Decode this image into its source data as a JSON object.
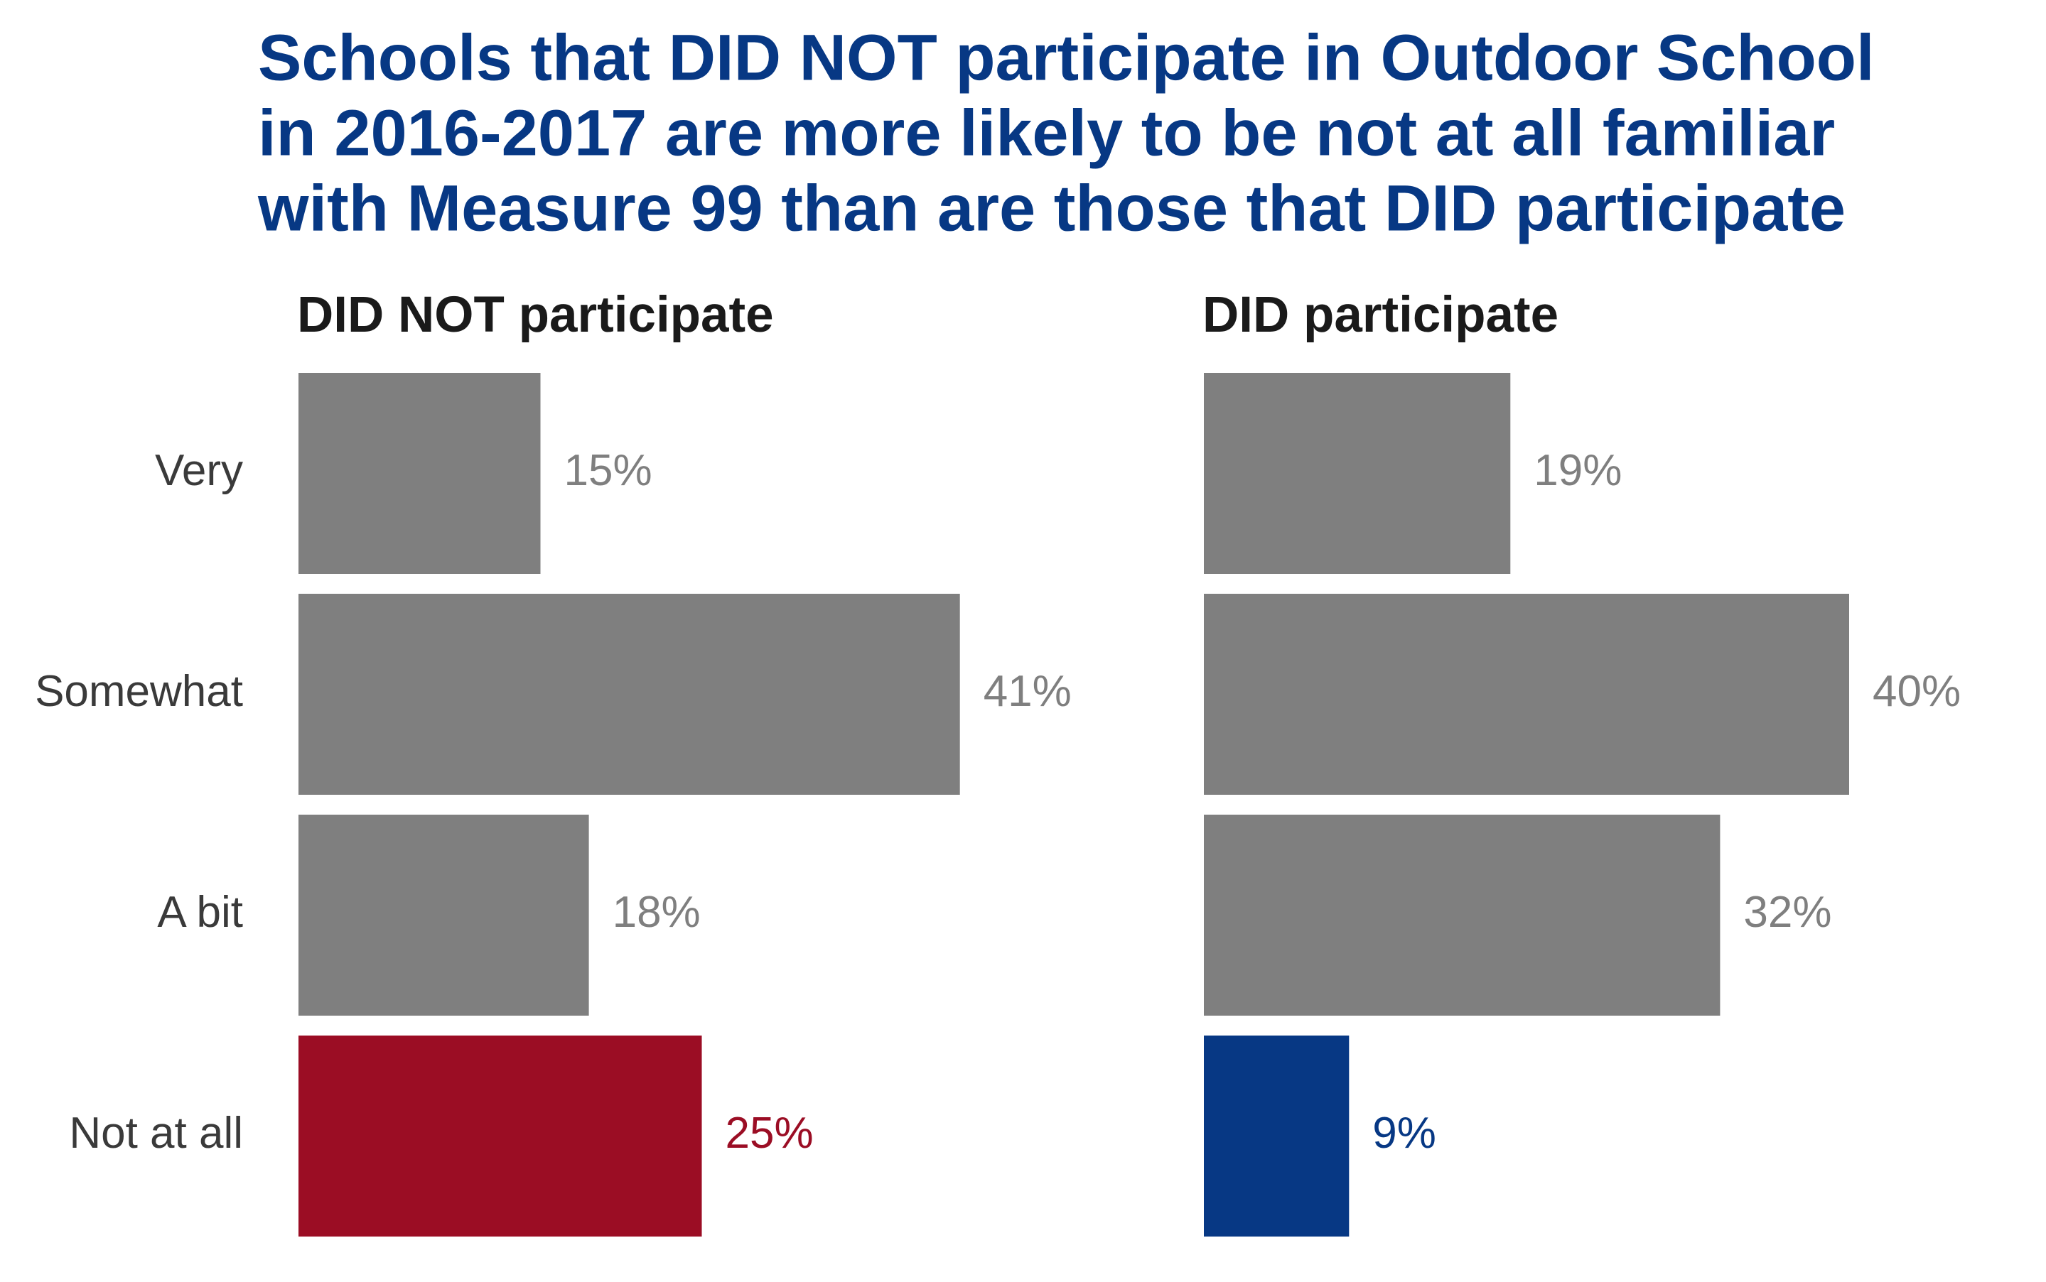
{
  "chart_data": {
    "type": "bar",
    "orientation": "horizontal",
    "title": "Schools that DID NOT participate in Outdoor School in 2016-2017 are more likely to be not at all familiar with Measure 99 than are those that DID participate",
    "title_lines": [
      "Schools that DID NOT participate in Outdoor School",
      "in 2016-2017 are more likely to be not at all familiar",
      "with Measure 99 than are those that DID participate"
    ],
    "categories": [
      "Very",
      "Somewhat",
      "A bit",
      "Not at all"
    ],
    "panels": [
      {
        "title": "DID NOT participate",
        "values": [
          15,
          41,
          18,
          25
        ],
        "labels": [
          "15%",
          "41%",
          "18%",
          "25%"
        ],
        "bar_colors": [
          "#7f7f7f",
          "#7f7f7f",
          "#7f7f7f",
          "#9b0d24"
        ],
        "label_colors": [
          "#7f7f7f",
          "#7f7f7f",
          "#7f7f7f",
          "#9b0d24"
        ]
      },
      {
        "title": "DID participate",
        "values": [
          19,
          40,
          32,
          9
        ],
        "labels": [
          "19%",
          "40%",
          "32%",
          "9%"
        ],
        "bar_colors": [
          "#7f7f7f",
          "#7f7f7f",
          "#7f7f7f",
          "#073884"
        ],
        "label_colors": [
          "#7f7f7f",
          "#7f7f7f",
          "#7f7f7f",
          "#073884"
        ]
      }
    ],
    "grid": false,
    "colors": {
      "title": "#073884",
      "panel_title": "#1a1a1a",
      "category_label": "#3a3a3a",
      "bar_default": "#7f7f7f",
      "highlight_red": "#9b0d24",
      "highlight_blue": "#073884"
    }
  }
}
